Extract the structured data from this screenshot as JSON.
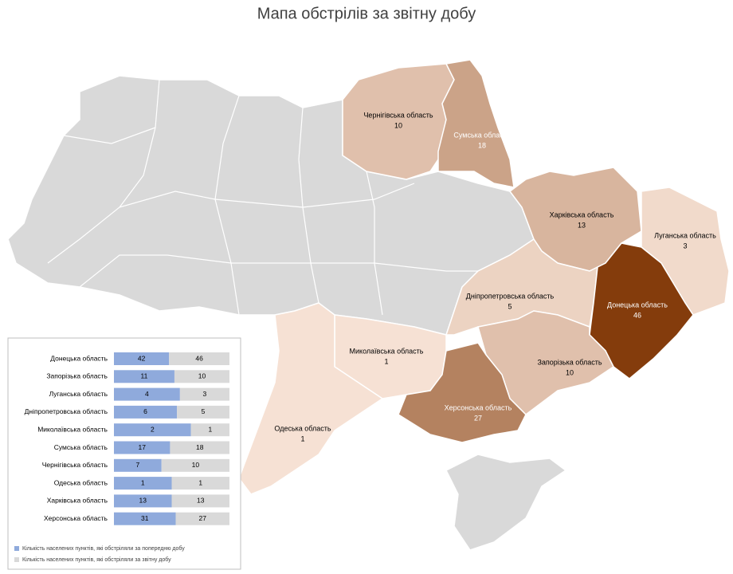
{
  "title": "Мапа обстрілів за звітну добу",
  "map": {
    "regions": [
      {
        "name": "Чернігівська область",
        "value": 10
      },
      {
        "name": "Сумська область",
        "value": 18
      },
      {
        "name": "Харківська область",
        "value": 13
      },
      {
        "name": "Луганська область",
        "value": 3
      },
      {
        "name": "Дніпропетровська область",
        "value": 5
      },
      {
        "name": "Донецька область",
        "value": 46
      },
      {
        "name": "Миколаївська область",
        "value": 1
      },
      {
        "name": "Запорізька область",
        "value": 10
      },
      {
        "name": "Херсонська область",
        "value": 27
      },
      {
        "name": "Одеська область",
        "value": 1
      }
    ]
  },
  "inset": {
    "categories": [
      "Донецька область",
      "Запорізька область",
      "Луганська область",
      "Дніпропетровська область",
      "Миколаївська область",
      "Сумська область",
      "Чернігівська  область",
      "Одеська область",
      "Харківська область",
      "Херсонська область"
    ],
    "series": [
      {
        "name": "Кількість населених пунктів, які обстріляли за попередню добу",
        "color": "#8faadc",
        "values": [
          42,
          11,
          4,
          6,
          2,
          17,
          7,
          1,
          13,
          31
        ]
      },
      {
        "name": "Кількість населених пунктів, які обстріляли за звітну добу",
        "color": "#d9d9d9",
        "values": [
          46,
          10,
          3,
          5,
          1,
          18,
          10,
          1,
          13,
          27
        ]
      }
    ]
  }
}
